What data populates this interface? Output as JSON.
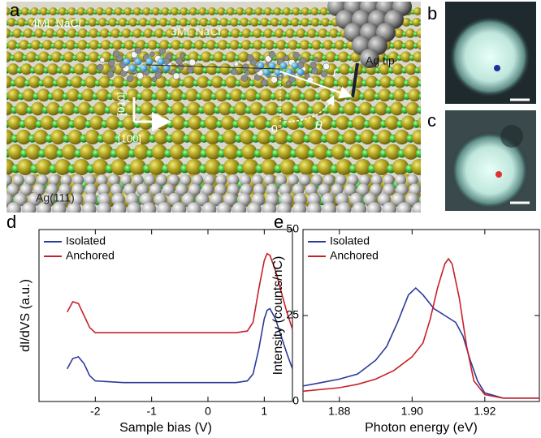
{
  "panel_a": {
    "label": "a",
    "layer_top": "4ML NaCl",
    "layer_bottom": "3ML NaCl",
    "tip": "Ag tip",
    "radius": "r",
    "angle": "θ",
    "zero": "0°",
    "dir_y": "[010]",
    "dir_x": "[100]",
    "substrate": "Ag(111)"
  },
  "panel_b": {
    "label": "b"
  },
  "panel_c": {
    "label": "c"
  },
  "chart_data": [
    {
      "panel_label": "d",
      "type": "line",
      "xlabel": "Sample bias (V)",
      "ylabel": "dI/dVS (a.u.)",
      "xlim": [
        -3.0,
        1.5
      ],
      "xticks": [
        -2,
        -1,
        0,
        1
      ],
      "ylim": [
        0,
        10
      ],
      "legend": "upper left",
      "x": [
        -2.5,
        -2.4,
        -2.3,
        -2.2,
        -2.1,
        -2.0,
        -1.5,
        -1.0,
        -0.5,
        0,
        0.5,
        0.7,
        0.8,
        0.9,
        1.0,
        1.05,
        1.1,
        1.2,
        1.3,
        1.4,
        1.5
      ],
      "series": [
        {
          "name": "Isolated",
          "color": "#2b3a99",
          "values": [
            1.9,
            2.5,
            2.6,
            2.2,
            1.5,
            1.2,
            1.1,
            1.1,
            1.1,
            1.1,
            1.1,
            1.2,
            1.6,
            3.0,
            4.8,
            5.3,
            5.4,
            4.8,
            3.8,
            2.8,
            1.9
          ]
        },
        {
          "name": "Anchored",
          "color": "#c8202a",
          "values": [
            5.2,
            5.8,
            5.7,
            5.0,
            4.3,
            4.0,
            4.0,
            4.0,
            4.0,
            4.0,
            4.0,
            4.1,
            4.6,
            6.5,
            8.2,
            8.6,
            8.5,
            7.6,
            6.4,
            5.2,
            4.2
          ]
        }
      ]
    },
    {
      "panel_label": "e",
      "type": "line",
      "xlabel": "Photon energy (eV)",
      "ylabel": "Intensity (counts/nC)",
      "xlim": [
        1.87,
        1.935
      ],
      "xticks": [
        1.88,
        {
          "value": 1.9,
          "label": "1.90"
        },
        1.92
      ],
      "ylim": [
        0,
        50
      ],
      "yticks": [
        0,
        25,
        50
      ],
      "legend": "upper left",
      "series": [
        {
          "name": "Isolated",
          "color": "#2b3a99",
          "x": [
            1.87,
            1.875,
            1.88,
            1.885,
            1.89,
            1.893,
            1.896,
            1.899,
            1.901,
            1.903,
            1.906,
            1.909,
            1.912,
            1.914,
            1.916,
            1.918,
            1.92,
            1.925,
            1.93,
            1.935
          ],
          "values": [
            4.5,
            5.5,
            6.5,
            8,
            12,
            16,
            23,
            31,
            33,
            31,
            27,
            25,
            23,
            19,
            12,
            6,
            2.5,
            1,
            1,
            1
          ]
        },
        {
          "name": "Anchored",
          "color": "#c8202a",
          "x": [
            1.87,
            1.88,
            1.885,
            1.89,
            1.895,
            1.9,
            1.903,
            1.905,
            1.907,
            1.909,
            1.91,
            1.911,
            1.913,
            1.915,
            1.917,
            1.92,
            1.925,
            1.935
          ],
          "values": [
            3,
            4,
            5,
            6.5,
            9,
            13,
            17,
            24,
            33,
            40,
            41.5,
            40,
            30,
            16,
            6,
            2,
            1,
            1
          ]
        }
      ]
    }
  ]
}
